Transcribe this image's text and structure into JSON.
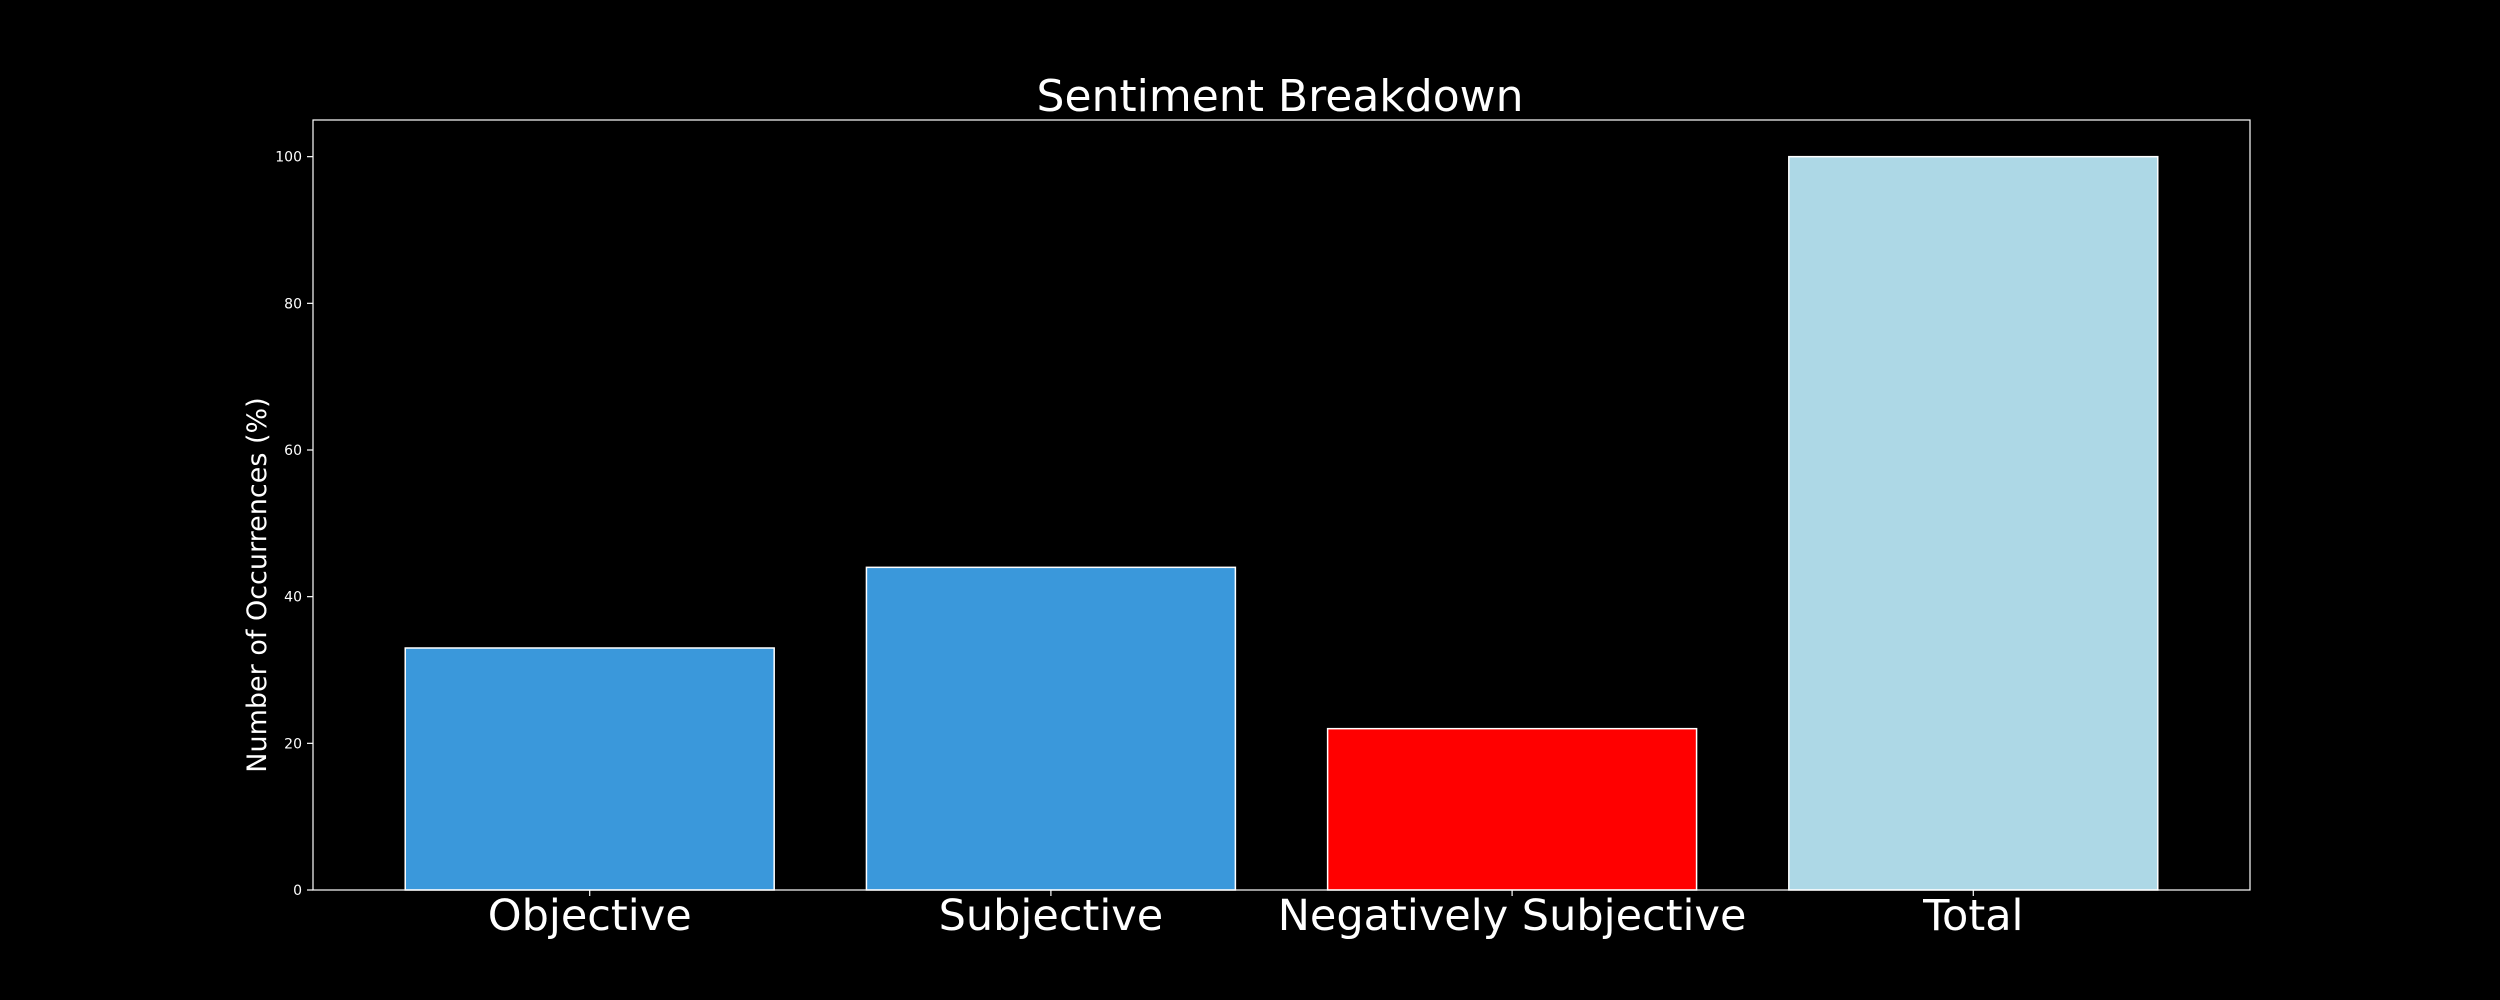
{
  "chart_data": {
    "type": "bar",
    "title": "Sentiment Breakdown",
    "xlabel": "",
    "ylabel": "Number of Occurrences (%)",
    "categories": [
      "Objective",
      "Subjective",
      "Negatively Subjective",
      "Total"
    ],
    "values": [
      33,
      44,
      22,
      100
    ],
    "bar_colors": [
      "#3a98db",
      "#3a98db",
      "#ff0000",
      "#add8e6"
    ],
    "ylim": [
      0,
      105
    ],
    "yticks": [
      0,
      20,
      40,
      60,
      80,
      100
    ],
    "grid": false,
    "legend": "none"
  },
  "colors": {
    "background": "#000000",
    "text": "#ffffff",
    "axis": "#ffffff",
    "bar_edge": "#ffffff"
  }
}
